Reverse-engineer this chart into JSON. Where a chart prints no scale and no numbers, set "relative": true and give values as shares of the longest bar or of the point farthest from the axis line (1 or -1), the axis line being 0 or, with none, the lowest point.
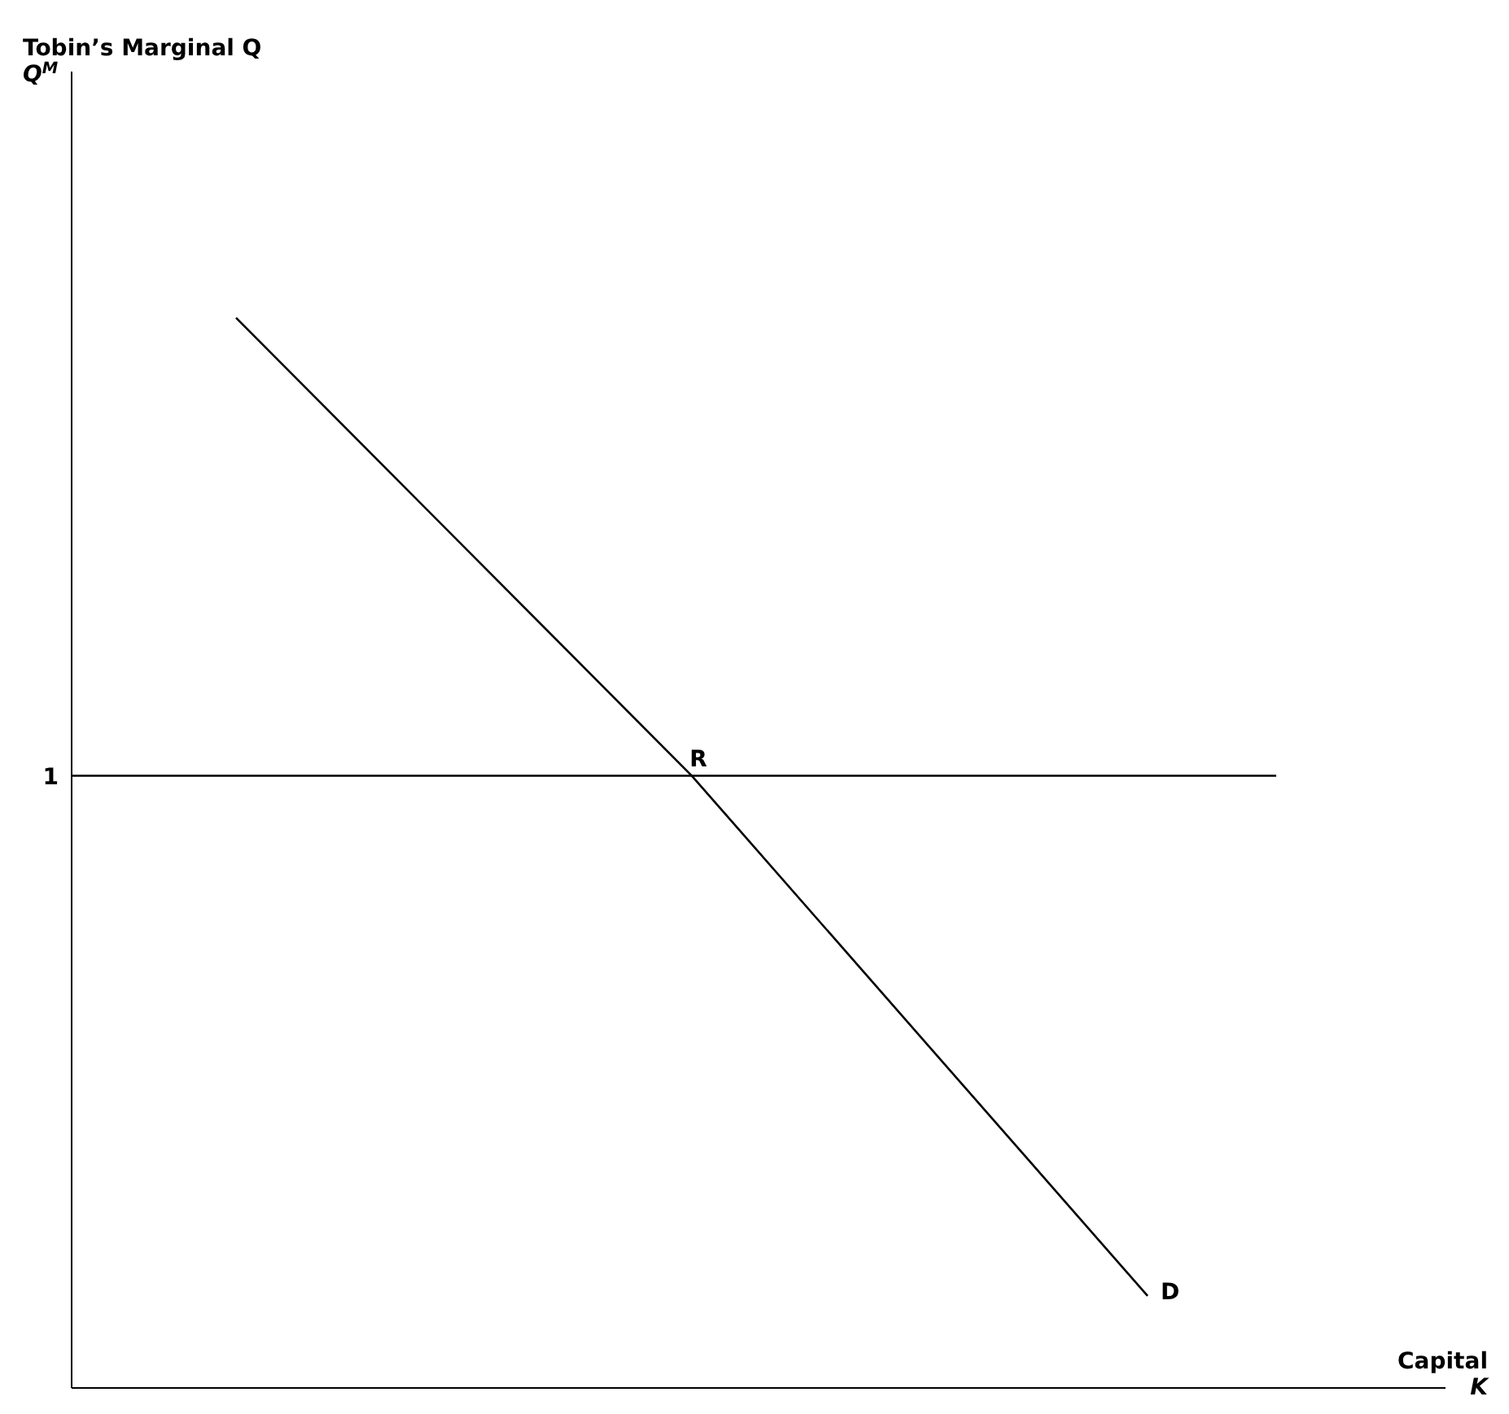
{
  "chart_data": {
    "type": "line",
    "relative": true,
    "xlabel": "Capital\nK",
    "categories": [
      null,
      null,
      null
    ],
    "series": [
      {
        "color": "#000000",
        "values": [
          1,
          0.572,
          0.086
        ]
      }
    ],
    "ref_lines": [
      {
        "axis": "y",
        "value": 0.572,
        "label": "1",
        "color": "#000000"
      }
    ],
    "annotations": [
      "Tobin’s Marginal Q\nQ$^{M}$",
      "R",
      "D"
    ],
    "marker": "none",
    "line_style": "solid"
  }
}
